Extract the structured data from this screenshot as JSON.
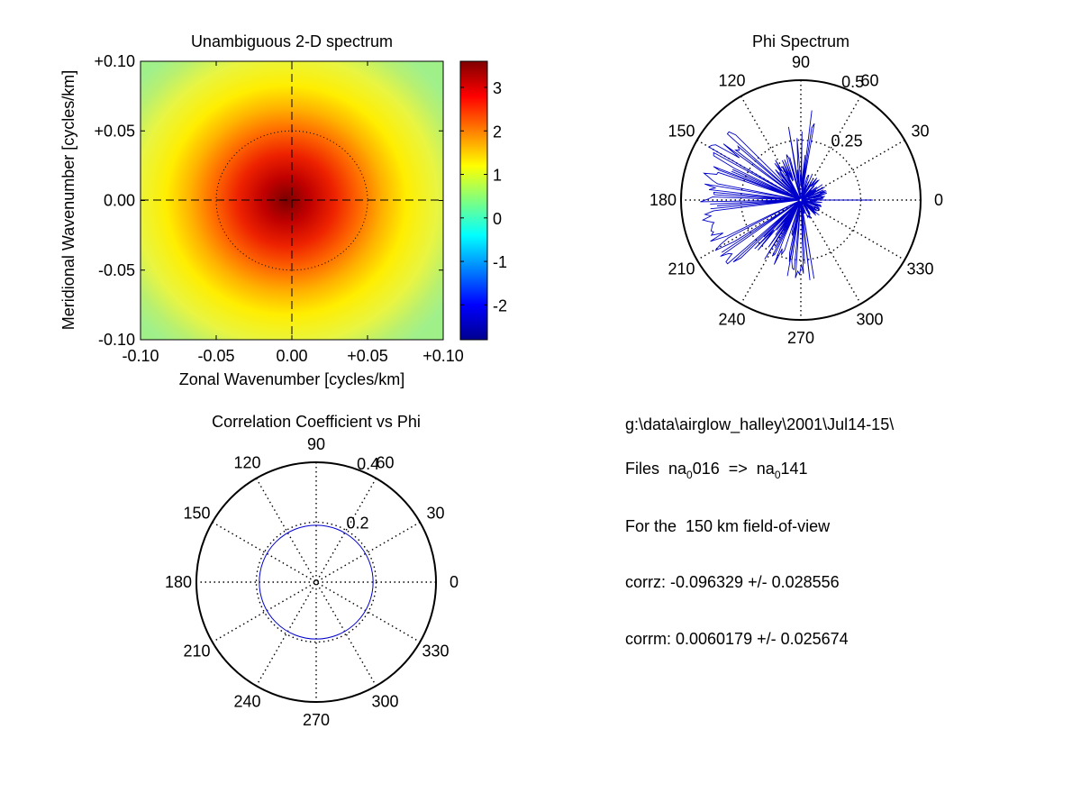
{
  "chart_data": [
    {
      "type": "heatmap",
      "title": "Unambiguous 2-D spectrum",
      "xlabel": "Zonal Wavenumber [cycles/km]",
      "ylabel": "Meridional Wavenumber [cycles/km]",
      "xlim": [
        -0.1,
        0.1
      ],
      "ylim": [
        -0.1,
        0.1
      ],
      "x_ticks": [
        "-0.10",
        "-0.05",
        "0.00",
        "+0.05",
        "+0.10"
      ],
      "y_ticks": [
        "+0.10",
        "+0.05",
        "0.00",
        "-0.05",
        "-0.10"
      ],
      "colorbar": {
        "colormap": "jet",
        "range": [
          -2.8,
          3.6
        ],
        "ticks": [
          "3",
          "2",
          "1",
          "0",
          "-1",
          "-2"
        ]
      },
      "peak": {
        "x": 0.0,
        "y": 0.0,
        "value": 3.6
      },
      "background_value": 0.8,
      "reference_circle_radius": 0.05,
      "crosshair": true
    },
    {
      "type": "polar",
      "title": "Phi Spectrum",
      "r_max": 0.5,
      "r_ticks": [
        {
          "value": 0.25,
          "label": "0.25"
        },
        {
          "value": 0.5,
          "label": "0.5"
        }
      ],
      "angle_ticks": [
        "0",
        "30",
        "60",
        "90",
        "120",
        "150",
        "180",
        "210",
        "240",
        "270",
        "300",
        "330"
      ],
      "series_color": "#0000cc",
      "series": [
        {
          "angle_range": [
            0,
            80
          ],
          "r_range": [
            0.02,
            0.12
          ]
        },
        {
          "angle_range": [
            80,
            100
          ],
          "r_range": [
            0.05,
            0.42
          ]
        },
        {
          "angle_range": [
            100,
            135
          ],
          "r_range": [
            0.05,
            0.2
          ]
        },
        {
          "angle_range": [
            135,
            160
          ],
          "r_range": [
            0.3,
            0.45
          ]
        },
        {
          "angle_range": [
            160,
            200
          ],
          "r_range": [
            0.35,
            0.42
          ]
        },
        {
          "angle_range": [
            200,
            225
          ],
          "r_range": [
            0.3,
            0.42
          ]
        },
        {
          "angle_range": [
            225,
            260
          ],
          "r_range": [
            0.1,
            0.3
          ]
        },
        {
          "angle_range": [
            260,
            280
          ],
          "r_range": [
            0.05,
            0.35
          ]
        },
        {
          "angle_range": [
            280,
            360
          ],
          "r_range": [
            0.02,
            0.1
          ]
        }
      ],
      "spike": {
        "angle": 0,
        "r": 0.3
      }
    },
    {
      "type": "polar",
      "title": "Correlation Coefficient vs Phi",
      "r_max": 0.4,
      "r_ticks": [
        {
          "value": 0.2,
          "label": "0.2"
        },
        {
          "value": 0.4,
          "label": "0.4"
        }
      ],
      "angle_ticks": [
        "0",
        "30",
        "60",
        "90",
        "120",
        "150",
        "180",
        "210",
        "240",
        "270",
        "300",
        "330"
      ],
      "series_color": "#0000cc",
      "circle_r": 0.19
    }
  ],
  "info": {
    "path": "g:\\data\\airglow_halley\\2001\\Jul14-15\\",
    "files_label": "Files  na",
    "files_sub1": "0",
    "files_mid": "016  =>  na",
    "files_sub2": "0",
    "files_end": "141",
    "fov": "For the  150 km field-of-view",
    "corrz": "corrz: -0.096329 +/- 0.028556",
    "corrm": "corrm: 0.0060179 +/- 0.025674"
  }
}
